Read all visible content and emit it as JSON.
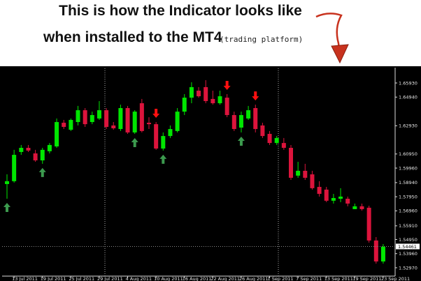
{
  "chart_data": {
    "type": "candlestick",
    "title": "This is how the Indicator looks like",
    "subtitle": "when installed to the MT4",
    "annotation": "(trading platform)",
    "categories": [
      null,
      "13 Jul 2011",
      null,
      null,
      null,
      "19 Jul 2011",
      null,
      null,
      null,
      "25 Jul 2011",
      null,
      null,
      null,
      "29 Jul 2011",
      null,
      null,
      null,
      "4 Aug 2011",
      null,
      null,
      null,
      "10 Aug 2011",
      null,
      null,
      null,
      "16 Aug 2011",
      null,
      null,
      null,
      "22 Aug 2011",
      null,
      null,
      null,
      "26 Aug 2011",
      null,
      null,
      null,
      "1 Sep 2011",
      null,
      null,
      null,
      "7 Sep 2011",
      null,
      null,
      null,
      "13 Sep 2011",
      null,
      null,
      null,
      "19 Sep 2011",
      null,
      null,
      null,
      "23 Sep 2011"
    ],
    "open": [
      1.5884,
      1.5904,
      1.6109,
      1.6138,
      1.6099,
      1.605,
      1.6114,
      1.6148,
      1.6314,
      1.6265,
      1.6319,
      1.6402,
      1.6319,
      1.6344,
      1.6402,
      1.6295,
      1.627,
      1.6417,
      1.6246,
      1.6451,
      1.6314,
      1.6304,
      1.6133,
      1.6221,
      1.6256,
      1.6392,
      1.649,
      1.6539,
      1.6564,
      1.6481,
      1.6451,
      1.649,
      1.6368,
      1.628,
      1.6344,
      1.6417,
      1.6295,
      1.6236,
      1.6172,
      1.6172,
      1.6138,
      1.5943,
      1.5977,
      1.5952,
      1.5864,
      1.5845,
      1.5767,
      1.5781,
      1.5781,
      1.5708,
      1.5728,
      1.5718,
      1.5488,
      1.5341
    ],
    "high": [
      1.5952,
      1.6124,
      1.6158,
      1.6158,
      1.6124,
      1.6138,
      1.6172,
      1.6344,
      1.6334,
      1.6344,
      1.6432,
      1.6417,
      1.6392,
      1.6466,
      1.6417,
      1.6319,
      1.6441,
      1.6432,
      1.6402,
      1.6481,
      1.6353,
      1.6319,
      1.6246,
      1.6295,
      1.6417,
      1.6515,
      1.6598,
      1.6564,
      1.6613,
      1.6539,
      1.6539,
      1.6515,
      1.6392,
      1.6392,
      1.6432,
      1.6441,
      1.6314,
      1.6256,
      1.6221,
      1.6207,
      1.6158,
      1.604,
      1.6026,
      1.5977,
      1.5904,
      1.5864,
      1.5815,
      1.5855,
      1.5796,
      1.5747,
      1.5747,
      1.5732,
      1.5512,
      1.5463
    ],
    "low": [
      1.5781,
      1.5894,
      1.6089,
      1.6109,
      1.604,
      1.6026,
      1.6099,
      1.6138,
      1.627,
      1.6256,
      1.6295,
      1.6285,
      1.6304,
      1.6334,
      1.627,
      1.6265,
      1.6256,
      1.6236,
      1.6236,
      1.6246,
      1.627,
      1.6124,
      1.6119,
      1.6207,
      1.6246,
      1.6368,
      1.6451,
      1.649,
      1.6451,
      1.6441,
      1.6441,
      1.6353,
      1.6256,
      1.6246,
      1.6334,
      1.6246,
      1.6207,
      1.6158,
      1.6158,
      1.6124,
      1.5913,
      1.5928,
      1.5913,
      1.5845,
      1.5796,
      1.5757,
      1.5747,
      1.5757,
      1.5728,
      1.5708,
      1.5698,
      1.5473,
      1.5326,
      1.5326
    ],
    "close": [
      1.5904,
      1.6089,
      1.6138,
      1.6119,
      1.605,
      1.6124,
      1.6158,
      1.6319,
      1.6285,
      1.6334,
      1.6402,
      1.6304,
      1.6368,
      1.6402,
      1.6285,
      1.6275,
      1.6417,
      1.6246,
      1.6392,
      1.6256,
      1.6304,
      1.6133,
      1.6221,
      1.627,
      1.6392,
      1.649,
      1.6564,
      1.65,
      1.6466,
      1.6451,
      1.65,
      1.6368,
      1.627,
      1.6368,
      1.6402,
      1.627,
      1.6221,
      1.6172,
      1.6207,
      1.6138,
      1.5928,
      1.5977,
      1.5928,
      1.5855,
      1.5815,
      1.5767,
      1.5786,
      1.5796,
      1.5747,
      1.5728,
      1.5708,
      1.5488,
      1.5341,
      1.5444
    ],
    "up_color": "#00e600",
    "down_color": "#dc143c",
    "signals_up": [
      0,
      5,
      18,
      22,
      33
    ],
    "signals_down": [
      21,
      31,
      35
    ],
    "signal_up_color": "#3c9a4e",
    "signal_down_color": "#ff1010",
    "last_price": 1.54461,
    "ylim": [
      1.5243,
      1.6686
    ],
    "yticks": [
      {
        "value": 1.6593,
        "label": "1.65930"
      },
      {
        "value": 1.6494,
        "label": "1.64940"
      },
      {
        "value": 1.6293,
        "label": "1.62930"
      },
      {
        "value": 1.6095,
        "label": "1.60950"
      },
      {
        "value": 1.5996,
        "label": "1.59960"
      },
      {
        "value": 1.5894,
        "label": "1.58940"
      },
      {
        "value": 1.5795,
        "label": "1.57950"
      },
      {
        "value": 1.5696,
        "label": "1.56960"
      },
      {
        "value": 1.5591,
        "label": "1.55910"
      },
      {
        "value": 1.5495,
        "label": "1.54950"
      },
      {
        "value": 1.5396,
        "label": "1.53960"
      },
      {
        "value": 1.5297,
        "label": "1.52970"
      }
    ]
  }
}
